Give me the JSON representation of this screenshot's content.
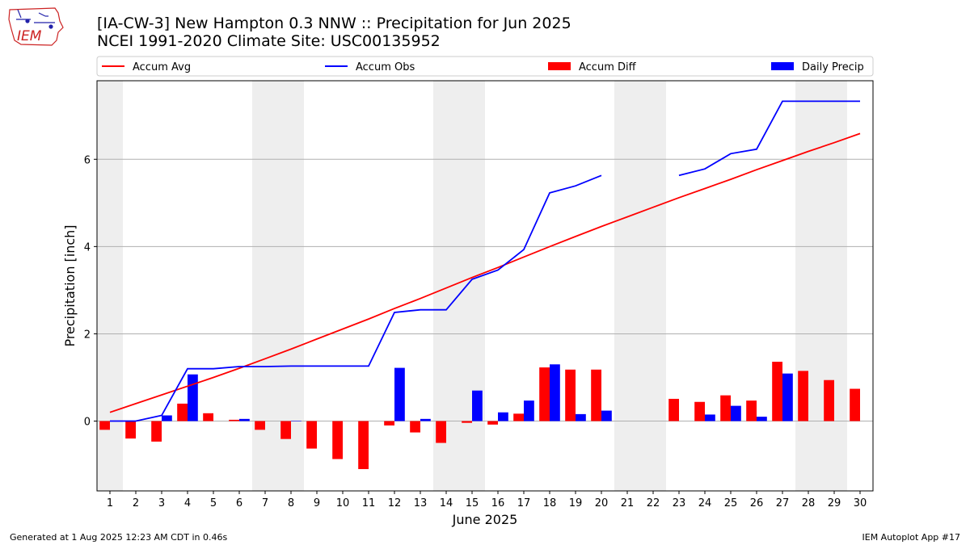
{
  "header": {
    "logo_text": "IEM",
    "title_line1": "[IA-CW-3] New Hampton 0.3 NNW :: Precipitation for Jun 2025",
    "title_line2": "NCEI 1991-2020 Climate Site: USC00135952"
  },
  "footer": {
    "generated": "Generated at 1 Aug 2025 12:23 AM CDT in 0.46s",
    "app": "IEM Autoplot App #17"
  },
  "colors": {
    "avg": "#ff0000",
    "obs": "#0000ff",
    "diff": "#ff0000",
    "daily": "#0000ff",
    "weekend_shade": "#eeeeee",
    "grid": "#b0b0b0"
  },
  "chart_data": {
    "type": "bar",
    "xlabel": "June 2025",
    "ylabel": "Precipitation [inch]",
    "xlim": [
      0.5,
      30.5
    ],
    "ylim": [
      -1.6,
      7.8
    ],
    "yticks": [
      0,
      2,
      4,
      6
    ],
    "grid": "horizontal",
    "legend_position": "top",
    "days": [
      1,
      2,
      3,
      4,
      5,
      6,
      7,
      8,
      9,
      10,
      11,
      12,
      13,
      14,
      15,
      16,
      17,
      18,
      19,
      20,
      21,
      22,
      23,
      24,
      25,
      26,
      27,
      28,
      29,
      30
    ],
    "weekend_days": [
      1,
      7,
      8,
      14,
      15,
      21,
      22,
      28,
      29
    ],
    "legend": [
      {
        "label": "Accum Avg",
        "kind": "line",
        "color": "#ff0000"
      },
      {
        "label": "Accum Obs",
        "kind": "line",
        "color": "#0000ff"
      },
      {
        "label": "Accum Diff",
        "kind": "bar",
        "color": "#ff0000"
      },
      {
        "label": "Daily Precip",
        "kind": "bar",
        "color": "#0000ff"
      }
    ],
    "series": [
      {
        "name": "Accum Avg",
        "type": "line",
        "values": [
          0.2,
          0.4,
          0.6,
          0.8,
          1.0,
          1.21,
          1.43,
          1.65,
          1.88,
          2.11,
          2.34,
          2.58,
          2.81,
          3.05,
          3.29,
          3.52,
          3.76,
          4.0,
          4.23,
          4.46,
          4.68,
          4.9,
          5.12,
          5.33,
          5.54,
          5.76,
          5.97,
          6.18,
          6.38,
          6.59
        ]
      },
      {
        "name": "Accum Obs",
        "type": "line",
        "values": [
          0.0,
          0.0,
          0.13,
          1.2,
          1.2,
          1.25,
          1.25,
          1.26,
          1.26,
          1.26,
          1.26,
          2.49,
          2.55,
          2.55,
          3.25,
          3.46,
          3.93,
          5.23,
          5.39,
          5.63,
          null,
          null,
          5.63,
          5.78,
          6.13,
          6.23,
          7.33,
          7.33,
          7.33,
          7.33
        ]
      },
      {
        "name": "Accum Diff",
        "type": "bar",
        "values": [
          -0.2,
          -0.4,
          -0.47,
          0.4,
          0.18,
          0.03,
          -0.2,
          -0.41,
          -0.63,
          -0.87,
          -1.1,
          -0.1,
          -0.26,
          -0.5,
          -0.04,
          -0.08,
          0.17,
          1.23,
          1.18,
          1.18,
          null,
          null,
          0.51,
          0.44,
          0.59,
          0.47,
          1.36,
          1.15,
          0.94,
          0.74
        ]
      },
      {
        "name": "Daily Precip",
        "type": "bar",
        "values": [
          0.0,
          0.0,
          0.13,
          1.07,
          0.0,
          0.05,
          0.0,
          0.01,
          0.0,
          0.0,
          0.0,
          1.22,
          0.05,
          0.0,
          0.7,
          0.2,
          0.47,
          1.3,
          0.16,
          0.24,
          null,
          null,
          0.0,
          0.15,
          0.35,
          0.1,
          1.09,
          0.0,
          0.0,
          0.0
        ]
      }
    ]
  }
}
